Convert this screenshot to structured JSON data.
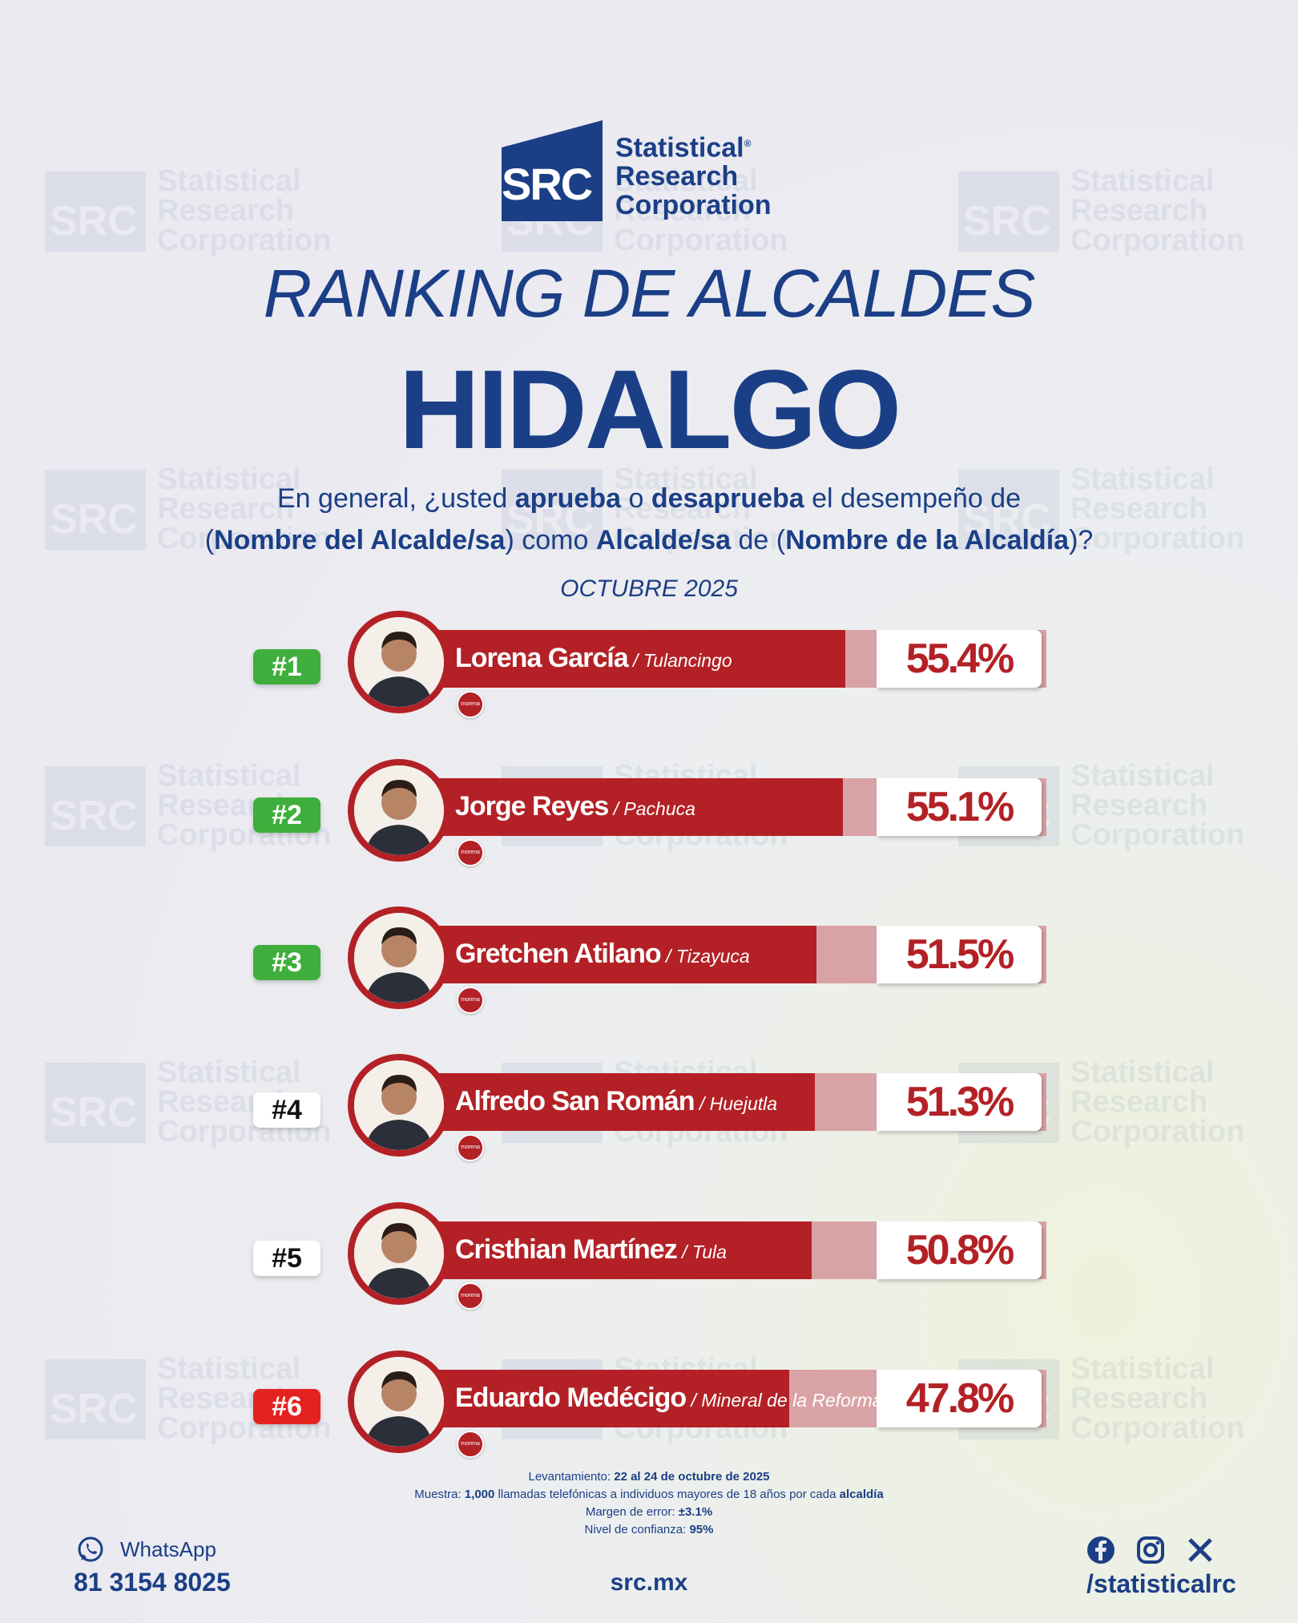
{
  "brand": {
    "mark": "SRC",
    "name_line1": "Statistical",
    "name_line2": "Research",
    "name_line3": "Corporation",
    "registered": "®"
  },
  "header": {
    "title": "RANKING DE ALCALDES",
    "state": "HIDALGO",
    "question_parts": {
      "p1": "En general, ¿usted ",
      "b1": "aprueba",
      "p2": " o ",
      "b2": "desaprueba",
      "p3": " el desempeño de",
      "p4": "(",
      "b3": "Nombre del Alcalde/sa",
      "p5": ") como ",
      "b4": "Alcalde/sa",
      "p6": " de (",
      "b5": "Nombre de la Alcaldía",
      "p7": ")?"
    },
    "date": "OCTUBRE 2025"
  },
  "ranking": [
    {
      "rank": "#1",
      "name": "Lorena García",
      "city": " / Tulancingo",
      "value": 55.4,
      "label": "55.4%",
      "party": "morena"
    },
    {
      "rank": "#2",
      "name": "Jorge Reyes",
      "city": " / Pachuca",
      "value": 55.1,
      "label": "55.1%",
      "party": "morena"
    },
    {
      "rank": "#3",
      "name": "Gretchen Atilano",
      "city": " / Tizayuca",
      "value": 51.5,
      "label": "51.5%",
      "party": "morena"
    },
    {
      "rank": "#4",
      "name": "Alfredo San Román",
      "city": " / Huejutla",
      "value": 51.3,
      "label": "51.3%",
      "party": "morena"
    },
    {
      "rank": "#5",
      "name": "Cristhian Martínez",
      "city": " / Tula",
      "value": 50.8,
      "label": "50.8%",
      "party": "morena"
    },
    {
      "rank": "#6",
      "name": "Eduardo Medécigo",
      "city": " / Mineral de la Reforma",
      "value": 47.8,
      "label": "47.8%",
      "party": "morena"
    }
  ],
  "rank_colors": {
    "top": "#3fae3c",
    "middle": "#ffffff",
    "bottom": "#e42320"
  },
  "footer": {
    "l1_label": "Levantamiento: ",
    "l1_value": "22 al 24 de octubre de 2025",
    "l2_label": "Muestra: ",
    "l2_value": "1,000",
    "l2_text": " llamadas telefónicas a individuos mayores de 18 años por cada ",
    "l2_value2": "alcaldía",
    "l3_label": "Margen de error: ",
    "l3_value": "±3.1%",
    "l4_label": "Nivel de confianza: ",
    "l4_value": "95%",
    "whatsapp_label": "WhatsApp",
    "phone": "81 3154 8025",
    "site": "src.mx",
    "handle": "/statisticalrc"
  },
  "colors": {
    "navy": "#1b3f86",
    "bar_red": "#b32126",
    "bar_bg": "#d9a3a5"
  }
}
